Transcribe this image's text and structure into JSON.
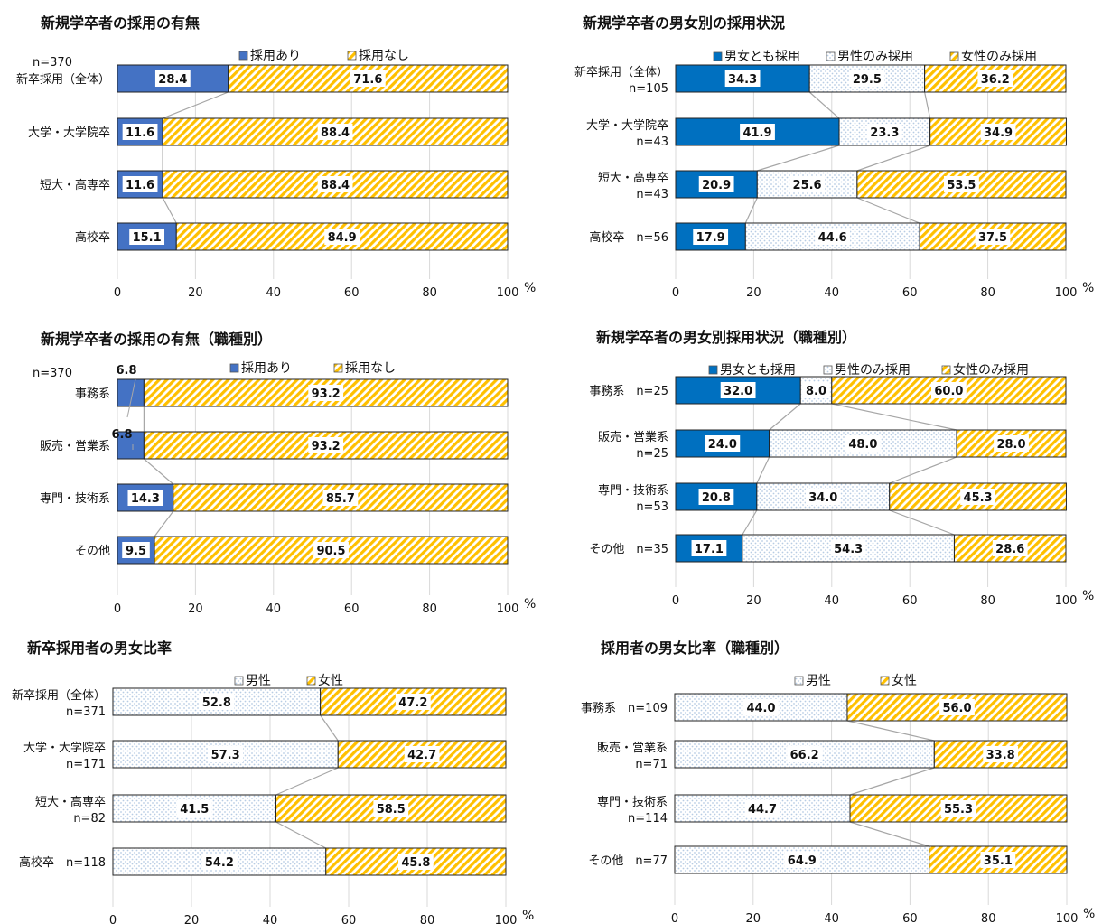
{
  "chart_data": [
    {
      "type": "bar",
      "orientation": "horizontal",
      "stacked": true,
      "title": "新規学卒者の採用の有無",
      "n_label": "n=370",
      "categories": [
        [
          "新卒採用（全体）"
        ],
        [
          "大学・大学院卒"
        ],
        [
          "短大・高専卒"
        ],
        [
          "高校卒"
        ]
      ],
      "series": [
        {
          "name": "採用あり",
          "values": [
            28.4,
            11.6,
            11.6,
            15.1
          ]
        },
        {
          "name": "採用なし",
          "values": [
            71.6,
            88.4,
            88.4,
            84.9
          ]
        }
      ],
      "xlim": [
        0,
        100
      ],
      "xticks": [
        "0",
        "20",
        "40",
        "60",
        "80",
        "100"
      ],
      "unit": "%",
      "legend": "top-center",
      "colors": [
        "#4472c4",
        "#ffc000"
      ],
      "patterns": [
        "solid",
        "diagonal"
      ]
    },
    {
      "type": "bar",
      "orientation": "horizontal",
      "stacked": true,
      "title": "新規学卒者の男女別の採用状況",
      "categories": [
        [
          "新卒採用（全体）",
          "n=105"
        ],
        [
          "大学・大学院卒",
          "n=43"
        ],
        [
          "短大・高専卒",
          "n=43"
        ],
        [
          "高校卒　n=56"
        ]
      ],
      "series": [
        {
          "name": "男女とも採用",
          "values": [
            34.3,
            41.9,
            20.9,
            17.9
          ]
        },
        {
          "name": "男性のみ採用",
          "values": [
            29.5,
            23.3,
            25.6,
            44.6
          ]
        },
        {
          "name": "女性のみ採用",
          "values": [
            36.2,
            34.9,
            53.5,
            37.5
          ]
        }
      ],
      "xlim": [
        0,
        100
      ],
      "xticks": [
        "0",
        "20",
        "40",
        "60",
        "80",
        "100"
      ],
      "unit": "%",
      "legend": "top-center",
      "colors": [
        "#0070c0",
        "#dce6f2",
        "#ffc000"
      ],
      "patterns": [
        "solid",
        "dots",
        "diagonal"
      ]
    },
    {
      "type": "bar",
      "orientation": "horizontal",
      "stacked": true,
      "title": "新規学卒者の採用の有無（職種別）",
      "n_label": "n=370",
      "categories": [
        [
          "事務系"
        ],
        [
          "販売・営業系"
        ],
        [
          "専門・技術系"
        ],
        [
          "その他"
        ]
      ],
      "series": [
        {
          "name": "採用あり",
          "values": [
            6.8,
            6.8,
            14.3,
            9.5
          ]
        },
        {
          "name": "採用なし",
          "values": [
            93.2,
            93.2,
            85.7,
            90.5
          ]
        }
      ],
      "xlim": [
        0,
        100
      ],
      "xticks": [
        "0",
        "20",
        "40",
        "60",
        "80",
        "100"
      ],
      "unit": "%",
      "legend": "top-center",
      "colors": [
        "#4472c4",
        "#ffc000"
      ],
      "patterns": [
        "solid",
        "diagonal"
      ]
    },
    {
      "type": "bar",
      "orientation": "horizontal",
      "stacked": true,
      "title": "新規学卒者の男女別採用状況（職種別）",
      "categories": [
        [
          "事務系　n=25"
        ],
        [
          "販売・営業系",
          "n=25"
        ],
        [
          "専門・技術系",
          "n=53"
        ],
        [
          "その他　n=35"
        ]
      ],
      "series": [
        {
          "name": "男女とも採用",
          "values": [
            32.0,
            24.0,
            20.8,
            17.1
          ]
        },
        {
          "name": "男性のみ採用",
          "values": [
            8.0,
            48.0,
            34.0,
            54.3
          ]
        },
        {
          "name": "女性のみ採用",
          "values": [
            60.0,
            28.0,
            45.3,
            28.6
          ]
        }
      ],
      "xlim": [
        0,
        100
      ],
      "xticks": [
        "0",
        "20",
        "40",
        "60",
        "80",
        "100"
      ],
      "unit": "%",
      "legend": "top-center",
      "colors": [
        "#0070c0",
        "#dce6f2",
        "#ffc000"
      ],
      "patterns": [
        "solid",
        "dots",
        "diagonal"
      ]
    },
    {
      "type": "bar",
      "orientation": "horizontal",
      "stacked": true,
      "title": "新卒採用者の男女比率",
      "categories": [
        [
          "新卒採用（全体）",
          "n=371"
        ],
        [
          "大学・大学院卒",
          "n=171"
        ],
        [
          "短大・高専卒",
          "n=82"
        ],
        [
          "高校卒　n=118"
        ]
      ],
      "series": [
        {
          "name": "男性",
          "values": [
            52.8,
            57.3,
            41.5,
            54.2
          ]
        },
        {
          "name": "女性",
          "values": [
            47.2,
            42.7,
            58.5,
            45.8
          ]
        }
      ],
      "xlim": [
        0,
        100
      ],
      "xticks": [
        "0",
        "20",
        "40",
        "60",
        "80",
        "100"
      ],
      "unit": "%",
      "legend": "top-center",
      "colors": [
        "#dce6f2",
        "#ffc000"
      ],
      "patterns": [
        "dots",
        "diagonal"
      ]
    },
    {
      "type": "bar",
      "orientation": "horizontal",
      "stacked": true,
      "title": "採用者の男女比率（職種別）",
      "categories": [
        [
          "事務系　n=109"
        ],
        [
          "販売・営業系",
          "n=71"
        ],
        [
          "専門・技術系",
          "n=114"
        ],
        [
          "その他　n=77"
        ]
      ],
      "series": [
        {
          "name": "男性",
          "values": [
            44.0,
            66.2,
            44.7,
            64.9
          ]
        },
        {
          "name": "女性",
          "values": [
            56.0,
            33.8,
            55.3,
            35.1
          ]
        }
      ],
      "xlim": [
        0,
        100
      ],
      "xticks": [
        "0",
        "20",
        "40",
        "60",
        "80",
        "100"
      ],
      "unit": "%",
      "legend": "top-center",
      "colors": [
        "#dce6f2",
        "#ffc000"
      ],
      "patterns": [
        "dots",
        "diagonal"
      ]
    }
  ]
}
